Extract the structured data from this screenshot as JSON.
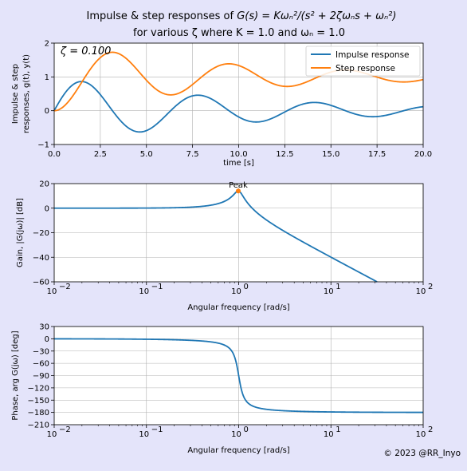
{
  "figure": {
    "title_line1_prefix": "Impulse & step responses of ",
    "title_line1_formula": "G(s) = Kωₙ²/(s² + 2ζωₙs + ωₙ²)",
    "title_line2": "for various ζ where K = 1.0 and ωₙ = 1.0",
    "copyright": "© 2023 @RR_Inyo",
    "zeta_label": "ζ = 0.100",
    "colors": {
      "background": "#e4e4fa",
      "axes_bg": "#ffffff",
      "impulse": "#1f77b4",
      "step": "#ff7f0e",
      "grid": "#b0b0b0",
      "peak_marker": "#ff7f0e"
    }
  },
  "chart_data": [
    {
      "type": "line",
      "id": "time-response",
      "xlabel": "time [s]",
      "ylabel": "Impulse & step responses, g(t), y(t)",
      "ylabel_line1": "Impulse & step",
      "ylabel_line2": "responses, g(t), y(t)",
      "xlim": [
        0,
        20
      ],
      "ylim": [
        -1,
        2
      ],
      "xticks": [
        0,
        2.5,
        5,
        7.5,
        10,
        12.5,
        15,
        17.5,
        20
      ],
      "xtick_labels": [
        "0.0",
        "2.5",
        "5.0",
        "7.5",
        "10.0",
        "12.5",
        "15.0",
        "17.5",
        "20.0"
      ],
      "yticks": [
        -1,
        0,
        1,
        2
      ],
      "ytick_labels": [
        "−1",
        "0",
        "1",
        "2"
      ],
      "grid": true,
      "legend_position": "top-right",
      "params": {
        "zeta": 0.1,
        "K": 1.0,
        "wn": 1.0
      },
      "series": [
        {
          "name": "Impulse response",
          "color": "#1f77b4",
          "samples_t": [
            0,
            1.58,
            4.74,
            7.9,
            11.07,
            14.23,
            17.39,
            20
          ],
          "samples_y": [
            0,
            0.85,
            -0.62,
            0.46,
            -0.33,
            0.24,
            -0.18,
            0.13
          ]
        },
        {
          "name": "Step response",
          "color": "#ff7f0e",
          "samples_t": [
            0,
            3.16,
            6.31,
            9.47,
            12.63,
            15.79,
            20
          ],
          "samples_y": [
            0,
            1.73,
            0.47,
            1.39,
            0.72,
            1.21,
            0.93
          ]
        }
      ]
    },
    {
      "type": "line",
      "id": "gain",
      "xscale": "log",
      "xlabel": "Angular frequency [rad/s]",
      "ylabel": "Gain, |G(jω)| [dB]",
      "xlim": [
        0.01,
        100
      ],
      "ylim": [
        -60,
        20
      ],
      "xticks": [
        0.01,
        0.1,
        1,
        10,
        100
      ],
      "xtick_labels": [
        "10",
        "10",
        "10",
        "10",
        "10"
      ],
      "xtick_exps": [
        "−2",
        "−1",
        "0",
        "1",
        "2"
      ],
      "yticks": [
        -60,
        -40,
        -20,
        0,
        20
      ],
      "ytick_labels": [
        "−60",
        "−40",
        "−20",
        "0",
        "20"
      ],
      "grid": true,
      "annotation": {
        "text": "Peak",
        "x": 0.99,
        "y": 14.0
      },
      "series": [
        {
          "name": "Gain",
          "color": "#1f77b4",
          "samples_w": [
            0.01,
            0.1,
            0.5,
            0.9,
            0.99,
            1.5,
            3,
            10,
            31.6
          ],
          "samples_db": [
            0,
            0.09,
            2.47,
            11.7,
            14.0,
            1.7,
            -18.0,
            -39.9,
            -60.0
          ]
        }
      ]
    },
    {
      "type": "line",
      "id": "phase",
      "xscale": "log",
      "xlabel": "Angular frequency [rad/s]",
      "ylabel": "Phase, arg G(jω) [deg]",
      "xlim": [
        0.01,
        100
      ],
      "ylim": [
        -210,
        30
      ],
      "xticks": [
        0.01,
        0.1,
        1,
        10,
        100
      ],
      "xtick_labels": [
        "10",
        "10",
        "10",
        "10",
        "10"
      ],
      "xtick_exps": [
        "−2",
        "−1",
        "0",
        "1",
        "2"
      ],
      "yticks": [
        30,
        0,
        -30,
        -60,
        -90,
        -120,
        -150,
        -180,
        -210
      ],
      "ytick_labels": [
        "30",
        "0",
        "−30",
        "−60",
        "−90",
        "−120",
        "−150",
        "−180",
        "−210"
      ],
      "grid": true,
      "series": [
        {
          "name": "Phase",
          "color": "#1f77b4",
          "samples_w": [
            0.01,
            0.1,
            0.5,
            0.9,
            1,
            1.1,
            2,
            10,
            100
          ],
          "samples_deg": [
            -0.1,
            -1.2,
            -7.6,
            -43.5,
            -90,
            -133.7,
            -172.4,
            -178.8,
            -179.9
          ]
        }
      ]
    }
  ]
}
